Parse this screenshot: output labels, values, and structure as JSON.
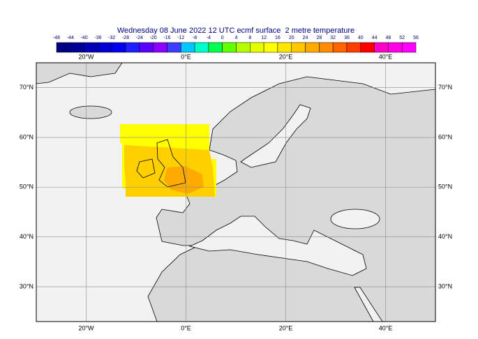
{
  "title": "Wednesday 08 June 2022 12 UTC ecmf surface  2 metre temperature",
  "colorbar": {
    "ticks": [
      -48,
      -44,
      -40,
      -36,
      -32,
      -28,
      -24,
      -20,
      -16,
      -12,
      -8,
      -4,
      0,
      4,
      8,
      12,
      16,
      20,
      24,
      28,
      32,
      36,
      40,
      44,
      48,
      52,
      56
    ],
    "colors": [
      "#000080",
      "#000096",
      "#0000b4",
      "#0000d2",
      "#0000f0",
      "#1e1eff",
      "#5a00ff",
      "#8c00ff",
      "#3c3cff",
      "#00c8ff",
      "#00ffc8",
      "#00ff50",
      "#64ff00",
      "#b4ff00",
      "#e6ff00",
      "#ffff00",
      "#ffe600",
      "#ffc800",
      "#ffaa00",
      "#ff8c00",
      "#ff6400",
      "#ff3c00",
      "#ff0000",
      "#ff00c8",
      "#ff00e6",
      "#ff00ff"
    ]
  },
  "map": {
    "lon_range": [
      -30,
      50
    ],
    "lat_range": [
      23,
      75
    ],
    "lon_labels": [
      {
        "value": -20,
        "label": "20°W"
      },
      {
        "value": 0,
        "label": "0°E"
      },
      {
        "value": 20,
        "label": "20°E"
      },
      {
        "value": 40,
        "label": "40°E"
      }
    ],
    "lat_labels": [
      {
        "value": 70,
        "label": "70°N"
      },
      {
        "value": 60,
        "label": "60°N"
      },
      {
        "value": 50,
        "label": "50°N"
      },
      {
        "value": 40,
        "label": "40°N"
      },
      {
        "value": 30,
        "label": "30°N"
      }
    ]
  }
}
